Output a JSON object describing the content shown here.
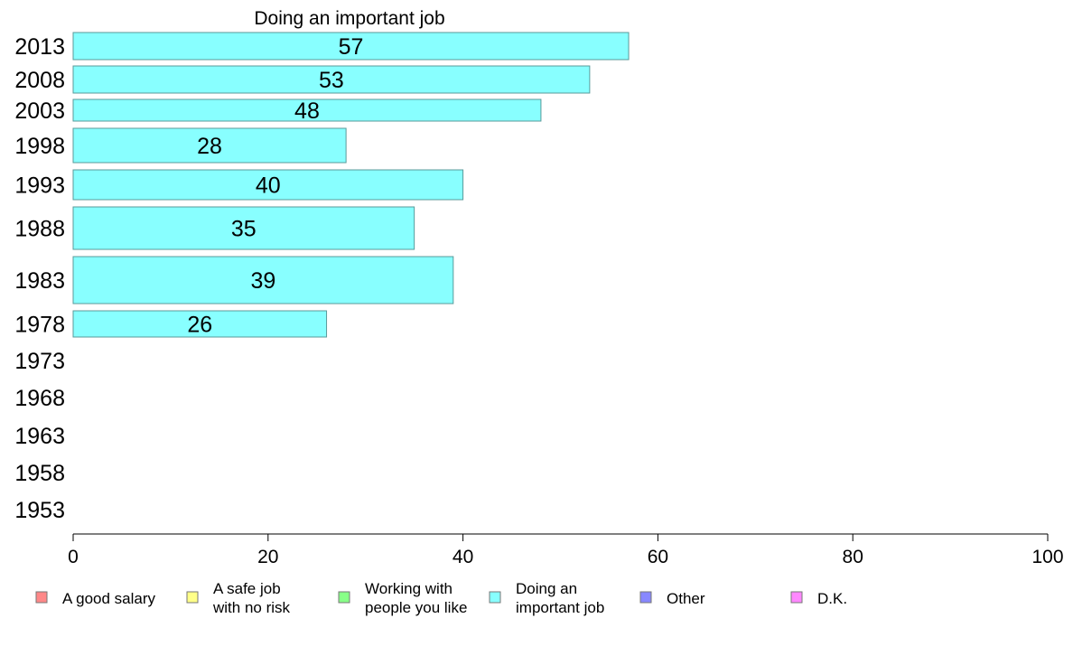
{
  "chart_data": {
    "type": "bar",
    "orientation": "horizontal",
    "title": "Doing an important job",
    "categories": [
      "2013",
      "2008",
      "2003",
      "1998",
      "1993",
      "1988",
      "1983",
      "1978",
      "1973",
      "1968",
      "1963",
      "1958",
      "1953"
    ],
    "series": [
      {
        "name": "Doing an important job",
        "color": "#88ffff",
        "values": [
          57,
          53,
          48,
          28,
          40,
          35,
          39,
          26,
          null,
          null,
          null,
          null,
          null
        ],
        "labels": [
          "57",
          "53",
          "48",
          "28",
          "40",
          "35",
          "39",
          "26",
          "",
          "",
          "",
          "",
          ""
        ]
      }
    ],
    "xlim": [
      0,
      100
    ],
    "xticks": [
      "0",
      "20",
      "40",
      "60",
      "80",
      "100"
    ],
    "xlabel": "",
    "ylabel": "",
    "grid": false,
    "legend_position": "bottom",
    "legend": [
      {
        "lines": [
          "A good salary"
        ],
        "color": "#ff8888"
      },
      {
        "lines": [
          "A safe job",
          "with no risk"
        ],
        "color": "#ffff88"
      },
      {
        "lines": [
          "Working with",
          "people you like"
        ],
        "color": "#88ff88"
      },
      {
        "lines": [
          "Doing an",
          "important job"
        ],
        "color": "#88ffff"
      },
      {
        "lines": [
          "Other"
        ],
        "color": "#8888ff"
      },
      {
        "lines": [
          "D.K."
        ],
        "color": "#ff88ff"
      }
    ]
  }
}
